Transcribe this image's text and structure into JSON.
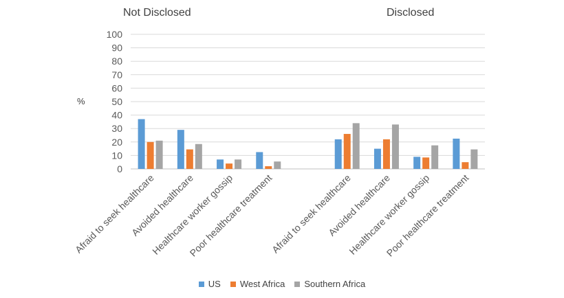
{
  "chart_data": {
    "type": "bar",
    "ylabel": "%",
    "ylim": [
      0,
      100
    ],
    "yticks": [
      0,
      10,
      20,
      30,
      40,
      50,
      60,
      70,
      80,
      90,
      100
    ],
    "grid": true,
    "legend_position": "bottom",
    "groups": [
      {
        "title": "Not Disclosed",
        "categories": [
          "Afraid to seek healthcare",
          "Avoided healthcare",
          "Healthcare worker gossip",
          "Poor healthcare treatment"
        ],
        "series": [
          {
            "name": "US",
            "values": [
              37,
              29,
              7,
              12.5
            ]
          },
          {
            "name": "West Africa",
            "values": [
              20,
              14.5,
              4,
              2
            ]
          },
          {
            "name": "Southern Africa",
            "values": [
              21,
              18.5,
              7,
              5.5
            ]
          }
        ]
      },
      {
        "title": "Disclosed",
        "categories": [
          "Afraid to seek healthcare",
          "Avoided healthcare",
          "Healthcare worker gossip",
          "Poor healthcare treatment"
        ],
        "series": [
          {
            "name": "US",
            "values": [
              22,
              15,
              9,
              22.5
            ]
          },
          {
            "name": "West Africa",
            "values": [
              26,
              22,
              8.5,
              5
            ]
          },
          {
            "name": "Southern Africa",
            "values": [
              34,
              33,
              17.5,
              14.5
            ]
          }
        ]
      }
    ],
    "colors": {
      "US": "#5B9BD5",
      "West Africa": "#ED7D31",
      "Southern Africa": "#A5A5A5"
    }
  }
}
